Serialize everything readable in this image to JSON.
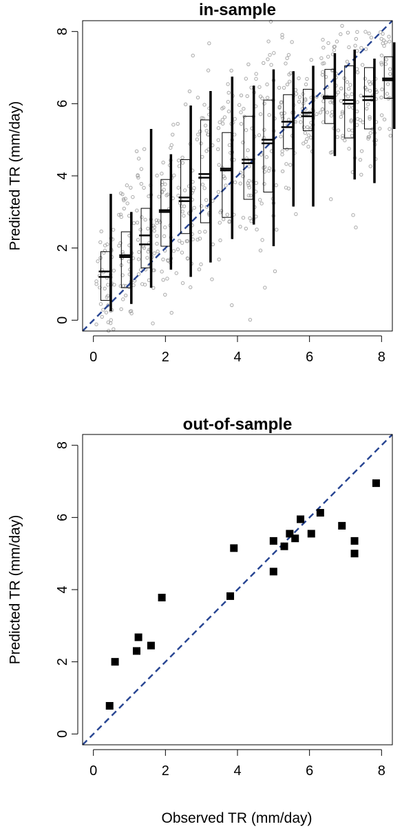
{
  "shared_xlabel": "Observed TR (mm/day)",
  "colors": {
    "identity_line": "#2a4793",
    "points_gray": "#a8a8a8",
    "box_black": "#000000",
    "square_black": "#000000"
  },
  "chart_data": [
    {
      "type": "scatter+boxplot",
      "title": "in-sample",
      "xlabel": "",
      "ylabel": "Predicted TR (mm/day)",
      "xlim": [
        -0.3,
        8.3
      ],
      "ylim": [
        -0.3,
        8.3
      ],
      "xticks": [
        0,
        2,
        4,
        6,
        8
      ],
      "yticks": [
        0,
        2,
        4,
        6,
        8
      ],
      "reference_line": {
        "style": "dashed",
        "from": [
          -0.3,
          -0.3
        ],
        "to": [
          8.3,
          8.3
        ]
      },
      "boxes": [
        {
          "x": 0.33,
          "box": [
            0.55,
            1.9
          ],
          "whisker": [
            0.25,
            3.5
          ],
          "mean": 1.35,
          "median": 1.2
        },
        {
          "x": 0.9,
          "box": [
            0.9,
            2.45
          ],
          "whisker": [
            0.45,
            3.0
          ],
          "mean": 1.8,
          "median": 1.75
        },
        {
          "x": 1.45,
          "box": [
            1.45,
            3.1
          ],
          "whisker": [
            0.9,
            5.3
          ],
          "mean": 2.35,
          "median": 2.1
        },
        {
          "x": 2.0,
          "box": [
            2.05,
            3.9
          ],
          "whisker": [
            1.4,
            4.6
          ],
          "mean": 3.05,
          "median": 3.0
        },
        {
          "x": 2.55,
          "box": [
            2.4,
            4.45
          ],
          "whisker": [
            1.2,
            5.95
          ],
          "mean": 3.4,
          "median": 3.3
        },
        {
          "x": 3.1,
          "box": [
            2.7,
            5.55
          ],
          "whisker": [
            1.6,
            6.35
          ],
          "mean": 4.05,
          "median": 3.95
        },
        {
          "x": 3.7,
          "box": [
            2.85,
            5.2
          ],
          "whisker": [
            2.25,
            6.75
          ],
          "mean": 4.2,
          "median": 4.15
        },
        {
          "x": 4.3,
          "box": [
            3.35,
            5.65
          ],
          "whisker": [
            2.65,
            6.5
          ],
          "mean": 4.45,
          "median": 4.35
        },
        {
          "x": 4.85,
          "box": [
            3.55,
            6.1
          ],
          "whisker": [
            2.05,
            6.95
          ],
          "mean": 5.0,
          "median": 4.9
        },
        {
          "x": 5.4,
          "box": [
            4.75,
            6.25
          ],
          "whisker": [
            3.15,
            6.9
          ],
          "mean": 5.5,
          "median": 5.35
        },
        {
          "x": 5.95,
          "box": [
            5.25,
            6.4
          ],
          "whisker": [
            3.15,
            7.05
          ],
          "mean": 5.75,
          "median": 5.65
        },
        {
          "x": 6.55,
          "box": [
            5.45,
            6.95
          ],
          "whisker": [
            4.55,
            7.4
          ],
          "mean": 6.2,
          "median": 6.15
        },
        {
          "x": 7.1,
          "box": [
            5.05,
            7.05
          ],
          "whisker": [
            3.9,
            7.5
          ],
          "mean": 6.1,
          "median": 6.0
        },
        {
          "x": 7.65,
          "box": [
            5.3,
            7.0
          ],
          "whisker": [
            3.8,
            7.25
          ],
          "mean": 6.2,
          "median": 6.1
        },
        {
          "x": 8.2,
          "box": [
            6.15,
            7.3
          ],
          "whisker": [
            5.3,
            7.7
          ],
          "mean": 6.7,
          "median": 6.65
        }
      ]
    },
    {
      "type": "scatter",
      "title": "out-of-sample",
      "xlabel": "Observed TR (mm/day)",
      "ylabel": "Predicted TR (mm/day)",
      "xlim": [
        -0.3,
        8.3
      ],
      "ylim": [
        -0.3,
        8.3
      ],
      "xticks": [
        0,
        2,
        4,
        6,
        8
      ],
      "yticks": [
        0,
        2,
        4,
        6,
        8
      ],
      "reference_line": {
        "style": "dashed",
        "from": [
          -0.3,
          -0.3
        ],
        "to": [
          8.3,
          8.3
        ]
      },
      "points": [
        {
          "x": 0.45,
          "y": 0.78
        },
        {
          "x": 0.6,
          "y": 2.0
        },
        {
          "x": 1.2,
          "y": 2.3
        },
        {
          "x": 1.25,
          "y": 2.68
        },
        {
          "x": 1.6,
          "y": 2.45
        },
        {
          "x": 1.9,
          "y": 3.78
        },
        {
          "x": 3.8,
          "y": 3.82
        },
        {
          "x": 3.9,
          "y": 5.15
        },
        {
          "x": 5.0,
          "y": 5.35
        },
        {
          "x": 5.0,
          "y": 4.5
        },
        {
          "x": 5.3,
          "y": 5.2
        },
        {
          "x": 5.45,
          "y": 5.55
        },
        {
          "x": 5.6,
          "y": 5.42
        },
        {
          "x": 5.75,
          "y": 5.95
        },
        {
          "x": 6.05,
          "y": 5.55
        },
        {
          "x": 6.3,
          "y": 6.13
        },
        {
          "x": 6.9,
          "y": 5.77
        },
        {
          "x": 7.25,
          "y": 5.35
        },
        {
          "x": 7.25,
          "y": 5.0
        },
        {
          "x": 7.85,
          "y": 6.95
        }
      ]
    }
  ]
}
